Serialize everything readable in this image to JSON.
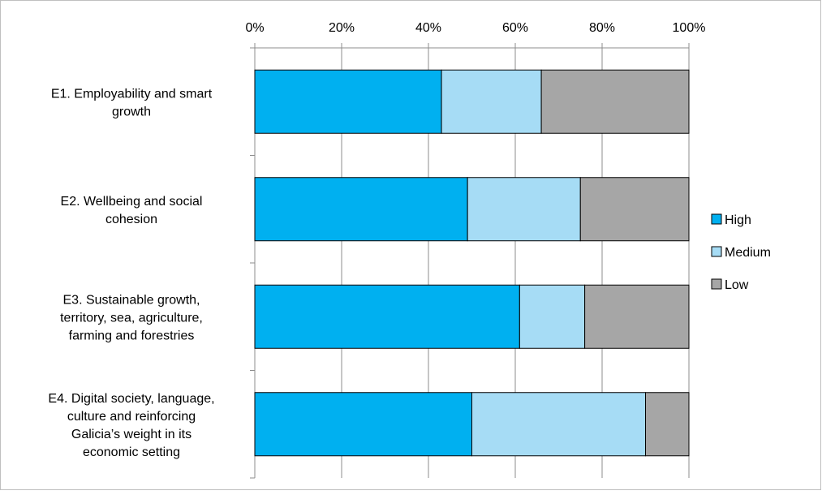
{
  "chart_data": {
    "type": "bar",
    "orientation": "horizontal",
    "stacked": "percent",
    "categories": [
      [
        "E1. Employability and smart",
        "growth"
      ],
      [
        "E2. Wellbeing and social",
        "cohesion"
      ],
      [
        "E3. Sustainable growth,",
        "territory, sea, agriculture,",
        "farming and forestries"
      ],
      [
        "E4. Digital society, language,",
        "culture and reinforcing",
        "Galicia’s weight in its",
        "economic setting"
      ]
    ],
    "series": [
      {
        "name": "High",
        "color": "#00b0f0",
        "values": [
          43,
          49,
          61,
          50
        ]
      },
      {
        "name": "Medium",
        "color": "#a6dcf5",
        "values": [
          23,
          26,
          15,
          40
        ]
      },
      {
        "name": "Low",
        "color": "#a6a6a6",
        "values": [
          34,
          25,
          24,
          10
        ]
      }
    ],
    "xlim": [
      0,
      100
    ],
    "xticks": [
      "0%",
      "20%",
      "40%",
      "60%",
      "80%",
      "100%"
    ],
    "axis_position": "top",
    "grid": true,
    "legend_position": "right"
  }
}
